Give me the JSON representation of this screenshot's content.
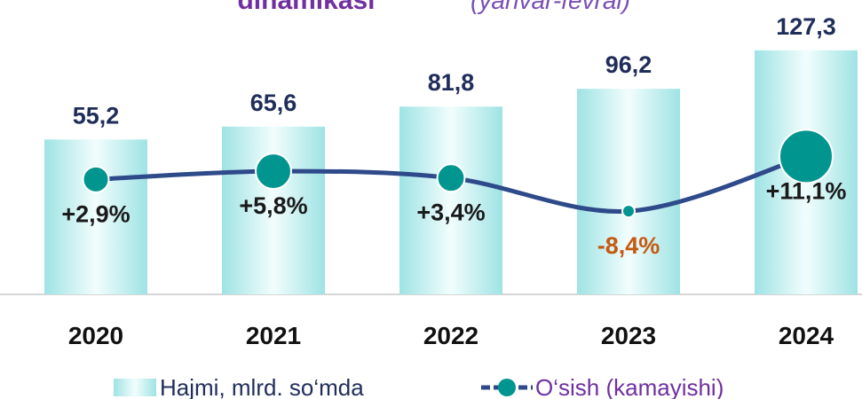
{
  "chart_data": {
    "type": "bar_line",
    "title": "dinamikasi",
    "subtitle": "(yanvar-fevral)",
    "categories": [
      "2020",
      "2021",
      "2022",
      "2023",
      "2024"
    ],
    "series": [
      {
        "name": "Hajmi, mlrd. so‘mda",
        "type": "bar",
        "color": "#aeeaea",
        "values": [
          55.2,
          65.6,
          81.8,
          96.2,
          127.3
        ],
        "value_labels": [
          "55,2",
          "65,6",
          "81,8",
          "96,2",
          "127,3"
        ]
      },
      {
        "name": "O‘sish (kamayishi)",
        "type": "line",
        "axis": "y2",
        "color": "#2e4a8a",
        "marker_color": "#00968f",
        "values": [
          2.9,
          5.8,
          3.4,
          -8.4,
          11.1
        ],
        "value_labels": [
          "+2,9%",
          "+5,8%",
          "+3,4%",
          "-8,4%",
          "+11,1%"
        ]
      }
    ],
    "ylim": [
      -70,
      130
    ],
    "y2lim": [
      -38,
      50
    ],
    "negative_label_color": "#c55a11",
    "legend": "bottom"
  }
}
